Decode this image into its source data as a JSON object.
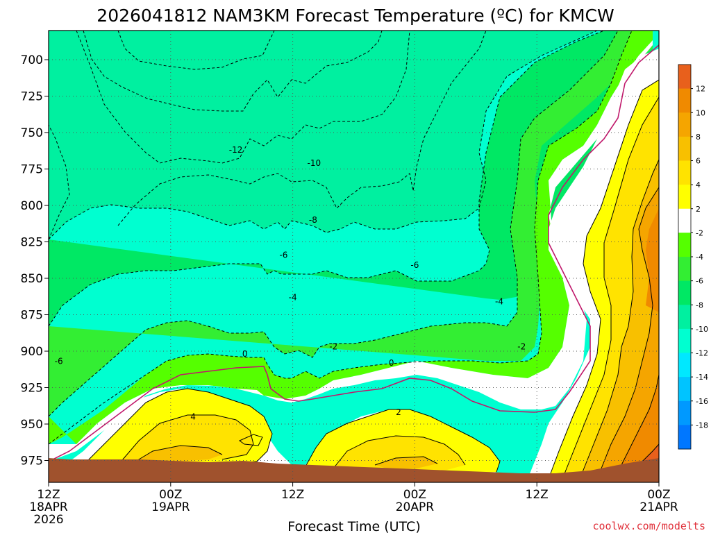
{
  "chart_data": {
    "type": "contour",
    "title": "2026041812 NAM3KM Forecast Temperature (ºC) for KMCW",
    "xlabel": "Forecast Time (UTC)",
    "ylabel": "",
    "credit": "coolwx.com/modelts",
    "y_axis": {
      "units": "hPa",
      "range": [
        990,
        680
      ],
      "ticks": [
        700,
        725,
        750,
        775,
        800,
        825,
        850,
        875,
        900,
        925,
        950,
        975
      ],
      "labels": [
        "700",
        "725",
        "750",
        "775",
        "800",
        "825",
        "850",
        "875",
        "900",
        "925",
        "950",
        "975"
      ]
    },
    "x_axis": {
      "units": "hours from 2026-04-18 12Z",
      "range": [
        0,
        60
      ],
      "ticks": [
        {
          "hour": 0,
          "line1": "12Z",
          "line2": "18APR",
          "line3": "2026"
        },
        {
          "hour": 12,
          "line1": "00Z",
          "line2": "19APR",
          "line3": ""
        },
        {
          "hour": 24,
          "line1": "12Z",
          "line2": "",
          "line3": ""
        },
        {
          "hour": 36,
          "line1": "00Z",
          "line2": "20APR",
          "line3": ""
        },
        {
          "hour": 48,
          "line1": "12Z",
          "line2": "",
          "line3": ""
        },
        {
          "hour": 60,
          "line1": "00Z",
          "line2": "21APR",
          "line3": ""
        }
      ]
    },
    "colorbar": {
      "levels": [
        {
          "label": "12",
          "color": "#e8601c"
        },
        {
          "label": "10",
          "color": "#f08a00"
        },
        {
          "label": "8",
          "color": "#f5a500"
        },
        {
          "label": "6",
          "color": "#f8c000"
        },
        {
          "label": "4",
          "color": "#ffe300"
        },
        {
          "label": "2",
          "color": "#ffff00"
        },
        {
          "label": "-2",
          "color": "#ffffff"
        },
        {
          "label": "-4",
          "color": "#55ff00"
        },
        {
          "label": "-6",
          "color": "#33ee33"
        },
        {
          "label": "-8",
          "color": "#00e864"
        },
        {
          "label": "-10",
          "color": "#00f0a0"
        },
        {
          "label": "-12",
          "color": "#00ffd0"
        },
        {
          "label": "-14",
          "color": "#00e8ff"
        },
        {
          "label": "-16",
          "color": "#00c4ff"
        },
        {
          "label": "-18",
          "color": "#0099ff"
        },
        {
          "label": "",
          "color": "#0077ff"
        }
      ]
    },
    "contour_labels": [
      {
        "label": "-12",
        "hour": 18.4,
        "p": 762
      },
      {
        "label": "-10",
        "hour": 26.1,
        "p": 771
      },
      {
        "label": "-8",
        "hour": 26.0,
        "p": 810
      },
      {
        "label": "-6",
        "hour": 23.1,
        "p": 834
      },
      {
        "label": "-6",
        "hour": 36.0,
        "p": 841
      },
      {
        "label": "-4",
        "hour": 24.0,
        "p": 863
      },
      {
        "label": "-4",
        "hour": 44.3,
        "p": 866
      },
      {
        "label": "-6",
        "hour": 1.0,
        "p": 907
      },
      {
        "label": "-2",
        "hour": 28.0,
        "p": 897
      },
      {
        "label": "-2",
        "hour": 46.5,
        "p": 897
      },
      {
        "label": "0",
        "hour": 19.3,
        "p": 902
      },
      {
        "label": "0",
        "hour": 33.7,
        "p": 908
      },
      {
        "label": "4",
        "hour": 14.2,
        "p": 945
      },
      {
        "label": "2",
        "hour": 34.4,
        "p": 942
      }
    ],
    "ground": {
      "color": "#a0522d"
    },
    "series": [
      {
        "name": "0C isotherm (magenta)",
        "color": "#c0186b",
        "x": [
          0,
          1.5,
          4,
          7,
          10,
          12,
          15,
          17,
          19,
          20.8,
          23,
          26,
          29,
          32,
          34.5,
          36,
          38,
          41,
          44,
          47,
          48.5,
          49.2,
          50,
          51.5,
          52,
          52.5,
          53,
          55,
          57,
          58,
          59,
          60
        ],
        "p": [
          955,
          952,
          938,
          925,
          912,
          905,
          902,
          898,
          905,
          905,
          932,
          935,
          932,
          925,
          915,
          908,
          912,
          918,
          929,
          932,
          932,
          920,
          880,
          842,
          800,
          780,
          762,
          738,
          716,
          706,
          698,
          692
        ]
      },
      {
        "name": "-2C boundary",
        "color": "#000000",
        "x": [
          0,
          3,
          6,
          9,
          12,
          14,
          16,
          19,
          21,
          22.5,
          23.5,
          25,
          26.5,
          27.5,
          29,
          31,
          33,
          35,
          38,
          41,
          44,
          46,
          47.2,
          47.4,
          46.8,
          47.5,
          49.5,
          51,
          53.5,
          56,
          57.5
        ],
        "p": [
          940,
          920,
          905,
          893,
          886,
          880,
          880,
          880,
          876,
          882,
          900,
          906,
          905,
          912,
          898,
          893,
          895,
          891,
          893,
          895,
          897,
          897,
          882,
          855,
          825,
          780,
          745,
          730,
          715,
          697,
          680
        ]
      },
      {
        "name": "-4C",
        "color": "#000000",
        "x": [
          0,
          3,
          6,
          9,
          12,
          15,
          18,
          20,
          21.5,
          22.5,
          23.5,
          25,
          26.5,
          27.5,
          29,
          32,
          36,
          40,
          43,
          45.5,
          46.4,
          46.5,
          47.5,
          49,
          51,
          53.5,
          55,
          56.2
        ],
        "p": [
          905,
          890,
          868,
          858,
          852,
          847,
          846,
          846,
          840,
          848,
          855,
          855,
          850,
          860,
          860,
          855,
          856,
          858,
          860,
          860,
          840,
          790,
          755,
          725,
          718,
          700,
          685,
          680
        ]
      },
      {
        "name": "-6C",
        "color": "#000000",
        "x": [
          0,
          3,
          6,
          9,
          12,
          15,
          18,
          20,
          21.3,
          22,
          23,
          24,
          25,
          26,
          27,
          29,
          32,
          34,
          36,
          38,
          41,
          43,
          44.2,
          44.3,
          43.5,
          43.2,
          44,
          46,
          48,
          50,
          52
        ],
        "p": [
          860,
          845,
          825,
          815,
          811,
          810,
          810,
          812,
          822,
          835,
          828,
          840,
          835,
          832,
          842,
          843,
          842,
          838,
          838,
          838,
          836,
          830,
          812,
          780,
          760,
          735,
          715,
          705,
          700,
          690,
          680
        ]
      },
      {
        "name": "-8C",
        "color": "#000000",
        "x": [
          1,
          3,
          6,
          9,
          12,
          14,
          16,
          18,
          19.7,
          20.8,
          22,
          23,
          24,
          25,
          26,
          27.5,
          29,
          30.5,
          32,
          34,
          35.5,
          37,
          39,
          41,
          42.5,
          43,
          42.8,
          43.5,
          45,
          47
        ],
        "p": [
          815,
          800,
          780,
          770,
          770,
          772,
          772,
          770,
          778,
          805,
          800,
          805,
          802,
          810,
          808,
          820,
          816,
          812,
          816,
          820,
          812,
          815,
          812,
          805,
          780,
          760,
          735,
          715,
          700,
          685
        ]
      },
      {
        "name": "-10C",
        "color": "#000000",
        "x": [
          7,
          9,
          12,
          14,
          16,
          18,
          19.4,
          21,
          22.5,
          24,
          26,
          27.5,
          29,
          30.5,
          32,
          34,
          35.5,
          36,
          36.3,
          36.7,
          37.5,
          39,
          40.5,
          41
        ],
        "p": [
          800,
          785,
          765,
          757,
          757,
          764,
          775,
          770,
          762,
          768,
          768,
          780,
          790,
          780,
          775,
          770,
          760,
          747,
          752,
          735,
          720,
          700,
          690,
          680
        ]
      },
      {
        "name": "-12C",
        "color": "#000000",
        "x": [
          5,
          7,
          9,
          11,
          13,
          15,
          17,
          18.5,
          19.5,
          20.5,
          22,
          23.5,
          24,
          25,
          26,
          28,
          29.5,
          30.5,
          32,
          33.2,
          34.2,
          35
        ],
        "p": [
          682,
          705,
          730,
          745,
          755,
          752,
          757,
          755,
          740,
          747,
          742,
          735,
          737,
          733,
          738,
          730,
          734,
          730,
          725,
          712,
          695,
          680
        ]
      },
      {
        "name": "-14C",
        "color": "#000000",
        "x": [
          7,
          8,
          10,
          12,
          14,
          16,
          18,
          20,
          22,
          22.8,
          23.6,
          24.5,
          25.5,
          26.5,
          27.5
        ],
        "p": [
          682,
          700,
          715,
          726,
          730,
          733,
          733,
          730,
          722,
          705,
          710,
          700,
          702,
          695,
          680
        ]
      },
      {
        "name": "-16C",
        "color": "#000000",
        "x": [
          7.5,
          8.5,
          10,
          12,
          14,
          16,
          18,
          20,
          21.5,
          22,
          22.5
        ],
        "p": [
          682,
          697,
          703,
          708,
          710,
          708,
          706,
          703,
          700,
          696,
          680
        ]
      }
    ]
  }
}
